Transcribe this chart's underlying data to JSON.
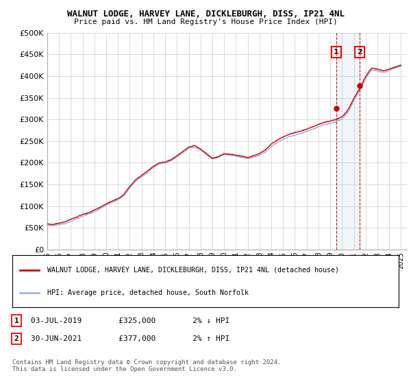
{
  "title": "WALNUT LODGE, HARVEY LANE, DICKLEBURGH, DISS, IP21 4NL",
  "subtitle": "Price paid vs. HM Land Registry's House Price Index (HPI)",
  "ylim": [
    0,
    500000
  ],
  "yticks": [
    0,
    50000,
    100000,
    150000,
    200000,
    250000,
    300000,
    350000,
    400000,
    450000,
    500000
  ],
  "ytick_labels": [
    "£0",
    "£50K",
    "£100K",
    "£150K",
    "£200K",
    "£250K",
    "£300K",
    "£350K",
    "£400K",
    "£450K",
    "£500K"
  ],
  "xlim_start": 1995.0,
  "xlim_end": 2025.5,
  "x_ticks": [
    1995,
    1996,
    1997,
    1998,
    1999,
    2000,
    2001,
    2002,
    2003,
    2004,
    2005,
    2006,
    2007,
    2008,
    2009,
    2010,
    2011,
    2012,
    2013,
    2014,
    2015,
    2016,
    2017,
    2018,
    2019,
    2020,
    2021,
    2022,
    2023,
    2024,
    2025
  ],
  "hpi_color": "#a0b8d8",
  "price_color": "#cc0000",
  "transaction1_x": 2019.5,
  "transaction1_y": 325000,
  "transaction2_x": 2021.5,
  "transaction2_y": 377000,
  "legend_line1": "WALNUT LODGE, HARVEY LANE, DICKLEBURGH, DISS, IP21 4NL (detached house)",
  "legend_line2": "HPI: Average price, detached house, South Norfolk",
  "note1_label": "1",
  "note1_date": "03-JUL-2019",
  "note1_price": "£325,000",
  "note1_hpi": "2% ↓ HPI",
  "note2_label": "2",
  "note2_date": "30-JUN-2021",
  "note2_price": "£377,000",
  "note2_hpi": "2% ↑ HPI",
  "footer": "Contains HM Land Registry data © Crown copyright and database right 2024.\nThis data is licensed under the Open Government Licence v3.0.",
  "background_color": "#ffffff",
  "grid_color": "#cccccc",
  "hpi_keypoints": [
    [
      1995.0,
      57000
    ],
    [
      1995.5,
      56000
    ],
    [
      1996.0,
      59000
    ],
    [
      1996.5,
      61000
    ],
    [
      1997.0,
      67000
    ],
    [
      1997.5,
      72000
    ],
    [
      1998.0,
      78000
    ],
    [
      1998.5,
      82000
    ],
    [
      1999.0,
      88000
    ],
    [
      1999.5,
      95000
    ],
    [
      2000.0,
      103000
    ],
    [
      2000.5,
      110000
    ],
    [
      2001.0,
      116000
    ],
    [
      2001.5,
      125000
    ],
    [
      2002.0,
      143000
    ],
    [
      2002.5,
      158000
    ],
    [
      2003.0,
      168000
    ],
    [
      2003.5,
      178000
    ],
    [
      2004.0,
      190000
    ],
    [
      2004.5,
      198000
    ],
    [
      2005.0,
      200000
    ],
    [
      2005.5,
      205000
    ],
    [
      2006.0,
      213000
    ],
    [
      2006.5,
      222000
    ],
    [
      2007.0,
      232000
    ],
    [
      2007.5,
      235000
    ],
    [
      2008.0,
      228000
    ],
    [
      2008.5,
      218000
    ],
    [
      2009.0,
      208000
    ],
    [
      2009.5,
      212000
    ],
    [
      2010.0,
      218000
    ],
    [
      2010.5,
      217000
    ],
    [
      2011.0,
      215000
    ],
    [
      2011.5,
      212000
    ],
    [
      2012.0,
      210000
    ],
    [
      2012.5,
      213000
    ],
    [
      2013.0,
      218000
    ],
    [
      2013.5,
      225000
    ],
    [
      2014.0,
      238000
    ],
    [
      2014.5,
      247000
    ],
    [
      2015.0,
      254000
    ],
    [
      2015.5,
      260000
    ],
    [
      2016.0,
      264000
    ],
    [
      2016.5,
      268000
    ],
    [
      2017.0,
      273000
    ],
    [
      2017.5,
      278000
    ],
    [
      2018.0,
      284000
    ],
    [
      2018.5,
      289000
    ],
    [
      2019.0,
      292000
    ],
    [
      2019.5,
      296000
    ],
    [
      2020.0,
      302000
    ],
    [
      2020.5,
      318000
    ],
    [
      2021.0,
      345000
    ],
    [
      2021.5,
      368000
    ],
    [
      2022.0,
      395000
    ],
    [
      2022.5,
      415000
    ],
    [
      2023.0,
      412000
    ],
    [
      2023.5,
      408000
    ],
    [
      2024.0,
      412000
    ],
    [
      2024.5,
      418000
    ],
    [
      2025.0,
      422000
    ]
  ],
  "price_keypoints": [
    [
      1995.0,
      58000
    ],
    [
      1995.5,
      57000
    ],
    [
      1996.0,
      60000
    ],
    [
      1996.5,
      63000
    ],
    [
      1997.0,
      69000
    ],
    [
      1997.5,
      74000
    ],
    [
      1998.0,
      80000
    ],
    [
      1998.5,
      84000
    ],
    [
      1999.0,
      90000
    ],
    [
      1999.5,
      97000
    ],
    [
      2000.0,
      105000
    ],
    [
      2000.5,
      112000
    ],
    [
      2001.0,
      118000
    ],
    [
      2001.5,
      128000
    ],
    [
      2002.0,
      146000
    ],
    [
      2002.5,
      162000
    ],
    [
      2003.0,
      172000
    ],
    [
      2003.5,
      182000
    ],
    [
      2004.0,
      193000
    ],
    [
      2004.5,
      201000
    ],
    [
      2005.0,
      203000
    ],
    [
      2005.5,
      208000
    ],
    [
      2006.0,
      217000
    ],
    [
      2006.5,
      227000
    ],
    [
      2007.0,
      237000
    ],
    [
      2007.5,
      240000
    ],
    [
      2008.0,
      232000
    ],
    [
      2008.5,
      222000
    ],
    [
      2009.0,
      211000
    ],
    [
      2009.5,
      215000
    ],
    [
      2010.0,
      221000
    ],
    [
      2010.5,
      220000
    ],
    [
      2011.0,
      218000
    ],
    [
      2011.5,
      215000
    ],
    [
      2012.0,
      212000
    ],
    [
      2012.5,
      216000
    ],
    [
      2013.0,
      221000
    ],
    [
      2013.5,
      229000
    ],
    [
      2014.0,
      242000
    ],
    [
      2014.5,
      251000
    ],
    [
      2015.0,
      258000
    ],
    [
      2015.5,
      264000
    ],
    [
      2016.0,
      268000
    ],
    [
      2016.5,
      272000
    ],
    [
      2017.0,
      277000
    ],
    [
      2017.5,
      282000
    ],
    [
      2018.0,
      288000
    ],
    [
      2018.5,
      293000
    ],
    [
      2019.0,
      296000
    ],
    [
      2019.5,
      300000
    ],
    [
      2020.0,
      306000
    ],
    [
      2020.5,
      322000
    ],
    [
      2021.0,
      349000
    ],
    [
      2021.5,
      372000
    ],
    [
      2022.0,
      399000
    ],
    [
      2022.5,
      419000
    ],
    [
      2023.0,
      416000
    ],
    [
      2023.5,
      412000
    ],
    [
      2024.0,
      416000
    ],
    [
      2024.5,
      422000
    ],
    [
      2025.0,
      426000
    ]
  ]
}
